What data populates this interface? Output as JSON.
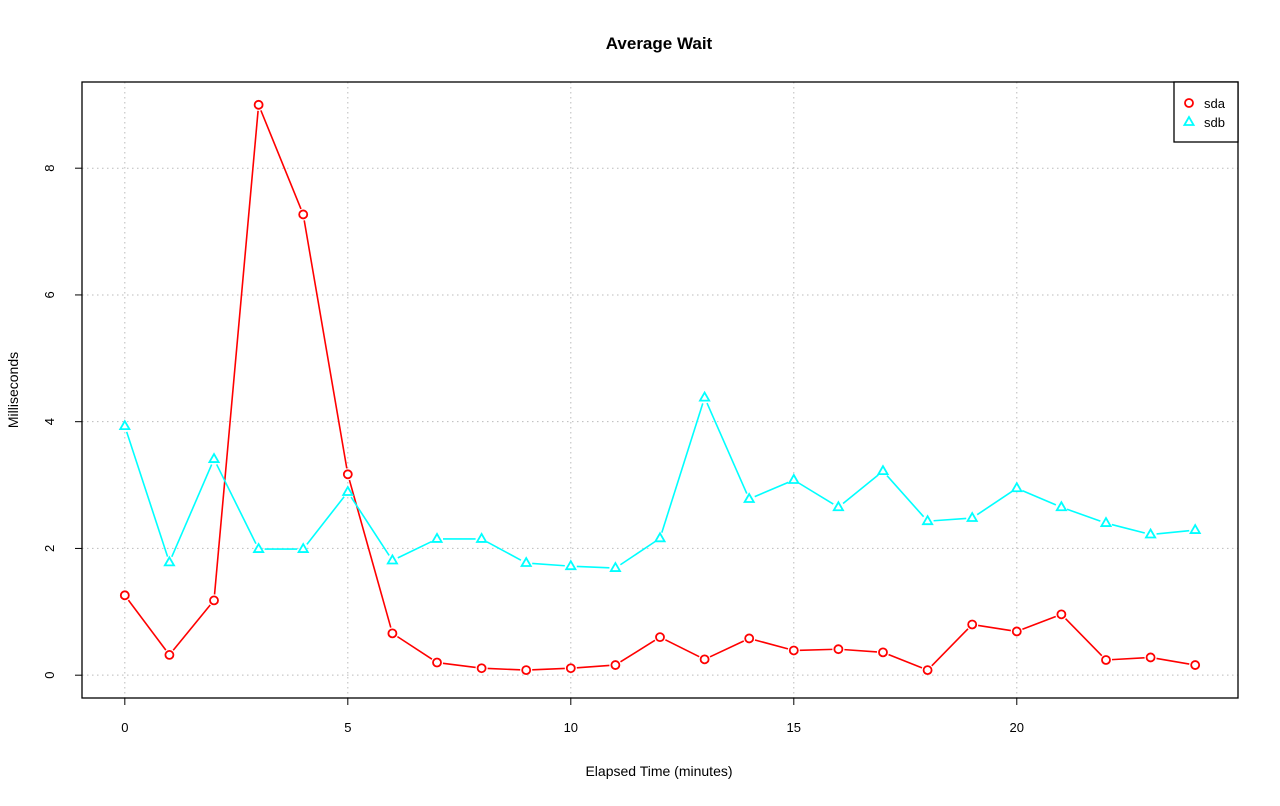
{
  "chart_data": {
    "type": "line",
    "title": "Average Wait",
    "xlabel": "Elapsed Time (minutes)",
    "ylabel": "Milliseconds",
    "xlim": [
      -0.96,
      24.96
    ],
    "ylim": [
      -0.36,
      9.36
    ],
    "xticks": [
      0,
      5,
      10,
      15,
      20
    ],
    "yticks": [
      0,
      2,
      4,
      6,
      8
    ],
    "grid": true,
    "legend_position": "top-right",
    "x": [
      0,
      1,
      2,
      3,
      4,
      5,
      6,
      7,
      8,
      9,
      10,
      11,
      12,
      13,
      14,
      15,
      16,
      17,
      18,
      19,
      20,
      21,
      22,
      23,
      24
    ],
    "series": [
      {
        "name": "sda",
        "color": "#ff0000",
        "marker": "circle",
        "values": [
          1.26,
          0.32,
          1.18,
          9.0,
          7.27,
          3.17,
          0.66,
          0.2,
          0.11,
          0.08,
          0.11,
          0.16,
          0.6,
          0.25,
          0.58,
          0.39,
          0.41,
          0.36,
          0.08,
          0.8,
          0.69,
          0.96,
          0.24,
          0.28,
          0.16
        ]
      },
      {
        "name": "sdb",
        "color": "#00ffff",
        "marker": "triangle",
        "values": [
          3.93,
          1.78,
          3.41,
          1.99,
          1.99,
          2.89,
          1.81,
          2.15,
          2.15,
          1.77,
          1.72,
          1.69,
          2.16,
          4.38,
          2.78,
          3.08,
          2.65,
          3.22,
          2.43,
          2.48,
          2.95,
          2.65,
          2.4,
          2.22,
          2.29
        ]
      }
    ]
  }
}
